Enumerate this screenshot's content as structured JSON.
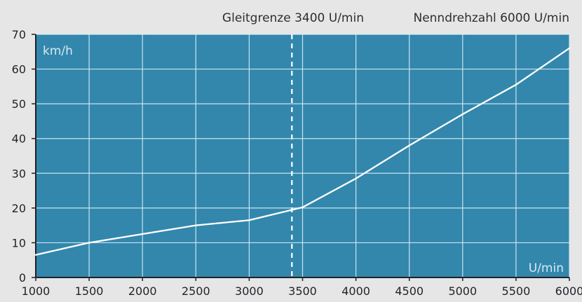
{
  "chart_data": {
    "type": "line",
    "title": "",
    "xlabel": "U/min",
    "ylabel": "km/h",
    "xlim": [
      1000,
      6000
    ],
    "ylim": [
      0,
      70
    ],
    "xticks": [
      1000,
      1500,
      2000,
      2500,
      3000,
      3500,
      4000,
      4500,
      5000,
      5500,
      6000
    ],
    "yticks": [
      0,
      10,
      20,
      30,
      40,
      50,
      60,
      70
    ],
    "grid": true,
    "background_color": "#3387ac",
    "page_background": "#e6e6e6",
    "series": [
      {
        "x": [
          1000,
          1500,
          2000,
          2500,
          3000,
          3500,
          4000,
          4500,
          5000,
          5500,
          6000
        ],
        "y": [
          6.5,
          10,
          12.5,
          15,
          16.5,
          20.2,
          28.5,
          38,
          47,
          55.5,
          66
        ],
        "color": "#ffffff"
      }
    ],
    "annotations": [
      {
        "type": "vline",
        "x": 3400,
        "style": "dashed",
        "color": "#ffffff"
      }
    ],
    "header_labels": {
      "slip_limit": "Gleitgrenze 3400 U/min",
      "rated_speed": "Nenndrehzahl 6000 U/min"
    }
  }
}
